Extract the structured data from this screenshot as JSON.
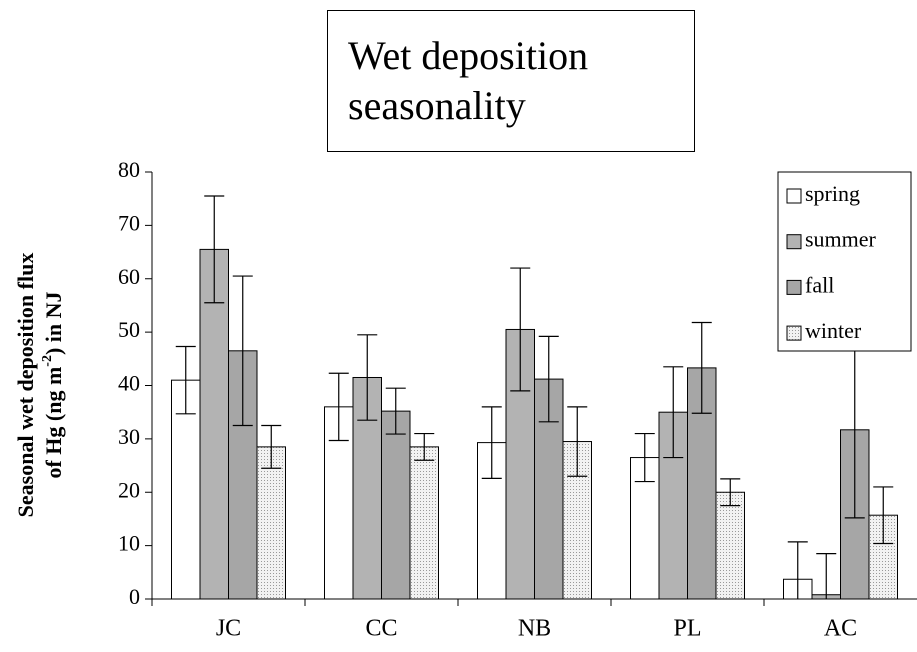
{
  "chart_data": {
    "type": "bar",
    "title": "Wet deposition seasonality",
    "ylabel": [
      "Seasonal wet deposition flux",
      "of Hg (ng m",
      "-2",
      ") in NJ"
    ],
    "categories": [
      "JC",
      "CC",
      "NB",
      "PL",
      "AC"
    ],
    "series": [
      {
        "name": "spring",
        "color": "#ffffff",
        "values": [
          41,
          36,
          29.3,
          26.5,
          3.7
        ],
        "errors": [
          6.3,
          6.3,
          6.7,
          4.5,
          7
        ]
      },
      {
        "name": "summer",
        "color": "#b3b3b3",
        "values": [
          65.5,
          41.5,
          50.5,
          35,
          0.8
        ],
        "errors": [
          10,
          8,
          11.5,
          8.5,
          7.7
        ]
      },
      {
        "name": "fall",
        "color": "#a6a6a6",
        "values": [
          46.5,
          35.2,
          41.2,
          43.3,
          31.7
        ],
        "errors": [
          14,
          4.3,
          8,
          8.5,
          16.5
        ]
      },
      {
        "name": "winter",
        "color": "#e6e6e6",
        "values": [
          28.5,
          28.5,
          29.5,
          20,
          15.7
        ],
        "errors": [
          4,
          2.5,
          6.5,
          2.5,
          5.3
        ]
      }
    ],
    "ylim": [
      0,
      80
    ],
    "yticks": [
      0,
      10,
      20,
      30,
      40,
      50,
      60,
      70,
      80
    ],
    "legend": "upper right"
  }
}
